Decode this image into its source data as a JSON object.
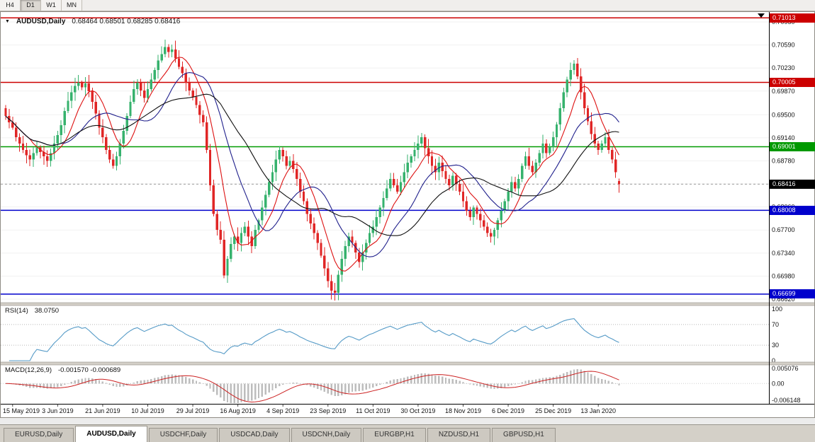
{
  "toolbar": {
    "buttons": [
      "H4",
      "D1",
      "W1",
      "MN"
    ],
    "active": "D1"
  },
  "chart": {
    "title": "AUDUSD,Daily",
    "ohlc_text": "0.68464 0.68501 0.68285 0.68416"
  },
  "chart_data": {
    "type": "candlestick",
    "symbol": "AUDUSD",
    "timeframe": "Daily",
    "last_ohlc": [
      0.68464,
      0.68501,
      0.68285,
      0.68416
    ],
    "closes": [
      0.6948,
      0.6938,
      0.693,
      0.6915,
      0.6905,
      0.6895,
      0.6887,
      0.688,
      0.689,
      0.6899,
      0.6892,
      0.6885,
      0.6878,
      0.689,
      0.6905,
      0.6918,
      0.6934,
      0.6956,
      0.6972,
      0.6985,
      0.6995,
      0.7,
      0.6993,
      0.6999,
      0.6987,
      0.697,
      0.6952,
      0.693,
      0.6915,
      0.6895,
      0.688,
      0.687,
      0.6885,
      0.6905,
      0.6925,
      0.6948,
      0.697,
      0.699,
      0.7,
      0.6988,
      0.6976,
      0.699,
      0.7005,
      0.702,
      0.7035,
      0.7045,
      0.7056,
      0.7048,
      0.7052,
      0.7038,
      0.7025,
      0.7015,
      0.7,
      0.6988,
      0.6978,
      0.6965,
      0.695,
      0.6938,
      0.6895,
      0.684,
      0.6795,
      0.677,
      0.6755,
      0.6699,
      0.6725,
      0.6748,
      0.676,
      0.675,
      0.6765,
      0.6775,
      0.676,
      0.6745,
      0.677,
      0.6785,
      0.6805,
      0.6825,
      0.6845,
      0.686,
      0.688,
      0.6895,
      0.6885,
      0.687,
      0.6878,
      0.6865,
      0.685,
      0.683,
      0.6815,
      0.6795,
      0.678,
      0.6765,
      0.675,
      0.673,
      0.671,
      0.669,
      0.6675,
      0.6672,
      0.67,
      0.6725,
      0.6745,
      0.676,
      0.675,
      0.6735,
      0.672,
      0.6735,
      0.675,
      0.6765,
      0.6775,
      0.679,
      0.6805,
      0.682,
      0.6835,
      0.685,
      0.684,
      0.683,
      0.6845,
      0.686,
      0.6875,
      0.6885,
      0.6895,
      0.6905,
      0.6915,
      0.6898,
      0.6885,
      0.687,
      0.686,
      0.6875,
      0.6862,
      0.685,
      0.684,
      0.6855,
      0.6842,
      0.683,
      0.6815,
      0.68,
      0.679,
      0.6805,
      0.6795,
      0.6785,
      0.6775,
      0.6765,
      0.676,
      0.677,
      0.6785,
      0.68,
      0.6815,
      0.683,
      0.6845,
      0.6835,
      0.685,
      0.687,
      0.6885,
      0.687,
      0.686,
      0.6875,
      0.689,
      0.6905,
      0.689,
      0.69,
      0.6915,
      0.6935,
      0.696,
      0.6985,
      0.7005,
      0.702,
      0.703,
      0.701,
      0.6985,
      0.696,
      0.694,
      0.692,
      0.6905,
      0.6895,
      0.6905,
      0.6915,
      0.6895,
      0.688,
      0.686,
      0.68416
    ],
    "x_labels": [
      "15 May 2019",
      "3 Jun 2019",
      "21 Jun 2019",
      "10 Jul 2019",
      "29 Jul 2019",
      "16 Aug 2019",
      "4 Sep 2019",
      "23 Sep 2019",
      "11 Oct 2019",
      "30 Oct 2019",
      "18 Nov 2019",
      "6 Dec 2019",
      "25 Dec 2019",
      "13 Jan 2020"
    ],
    "x_label_start_index": 2,
    "x_label_step": 13,
    "y_ticks": [
      "0.70950",
      "0.70590",
      "0.70230",
      "0.69870",
      "0.69500",
      "0.69140",
      "0.68780",
      "0.68420",
      "0.68060",
      "0.67700",
      "0.67340",
      "0.66980",
      "0.66620"
    ],
    "hlines": [
      {
        "price": 0.71013,
        "label": "0.71013",
        "color": "#cc0000"
      },
      {
        "price": 0.70005,
        "label": "0.70005",
        "color": "#cc0000"
      },
      {
        "price": 0.69001,
        "label": "0.69001",
        "color": "#009900"
      },
      {
        "price": 0.68008,
        "label": "0.68008",
        "color": "#0000cc"
      },
      {
        "price": 0.66699,
        "label": "0.66699",
        "color": "#0000cc"
      }
    ],
    "current_price": {
      "value": 0.68416,
      "label": "0.68416",
      "color": "#000000"
    },
    "colors": {
      "up": "#36b26d",
      "down": "#e02626"
    },
    "moving_averages": [
      {
        "period": 8,
        "color": "#dd1111"
      },
      {
        "period": 17,
        "color": "#20208c"
      },
      {
        "period": 28,
        "color": "#101010"
      }
    ],
    "indicators": {
      "rsi": {
        "label": "RSI(14)",
        "value": "38.0750",
        "period": 14,
        "levels": [
          "100",
          "70",
          "30",
          "0"
        ],
        "dotted_levels": [
          70,
          30
        ],
        "line_color": "#569bc7"
      },
      "macd": {
        "label": "MACD(12,26,9)",
        "values": "-0.001570 -0.000689",
        "fast": 12,
        "slow": 26,
        "signal": 9,
        "y_ticks": [
          "0.005076",
          "0.00",
          "-0.006148"
        ],
        "hist_color": "#bdbdbd",
        "signal_color": "#cc2222"
      }
    }
  },
  "tabs": {
    "items": [
      {
        "label": "EURUSD,Daily",
        "active": false
      },
      {
        "label": "AUDUSD,Daily",
        "active": true
      },
      {
        "label": "USDCHF,Daily",
        "active": false
      },
      {
        "label": "USDCAD,Daily",
        "active": false
      },
      {
        "label": "USDCNH,Daily",
        "active": false
      },
      {
        "label": "EURGBP,H1",
        "active": false
      },
      {
        "label": "NZDUSD,H1",
        "active": false
      },
      {
        "label": "GBPUSD,H1",
        "active": false
      }
    ]
  }
}
